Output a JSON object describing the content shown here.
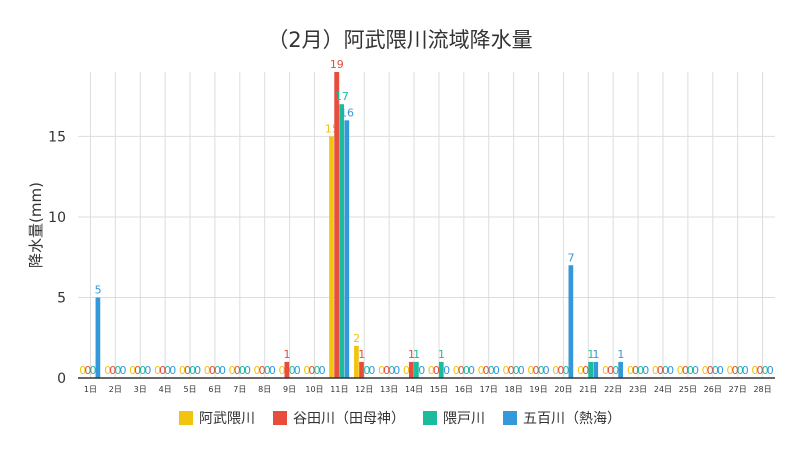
{
  "chart_data": {
    "type": "bar",
    "title": "（2月）阿武隈川流域降水量",
    "ylabel": "降水量(mm)",
    "xlabel": "",
    "ylim": [
      0,
      19
    ],
    "yticks": [
      0,
      5,
      10,
      15
    ],
    "grid": true,
    "legend_position": "bottom",
    "categories": [
      "1日",
      "2日",
      "3日",
      "4日",
      "5日",
      "6日",
      "7日",
      "8日",
      "9日",
      "10日",
      "11日",
      "12日",
      "13日",
      "14日",
      "15日",
      "16日",
      "17日",
      "18日",
      "19日",
      "20日",
      "21日",
      "22日",
      "23日",
      "24日",
      "25日",
      "26日",
      "27日",
      "28日"
    ],
    "series": [
      {
        "name": "阿武隈川",
        "color": "#f1c40f",
        "values": [
          0,
          0,
          0,
          0,
          0,
          0,
          0,
          0,
          0,
          0,
          15,
          2,
          0,
          0,
          0,
          0,
          0,
          0,
          0,
          0,
          0,
          0,
          0,
          0,
          0,
          0,
          0,
          0
        ]
      },
      {
        "name": "谷田川（田母神）",
        "color": "#e74c3c",
        "values": [
          0,
          0,
          0,
          0,
          0,
          0,
          0,
          0,
          1,
          0,
          19,
          1,
          0,
          1,
          0,
          0,
          0,
          0,
          0,
          0,
          0,
          0,
          0,
          0,
          0,
          0,
          0,
          0
        ]
      },
      {
        "name": "隈戸川",
        "color": "#1abc9c",
        "values": [
          0,
          0,
          0,
          0,
          0,
          0,
          0,
          0,
          0,
          0,
          17,
          0,
          0,
          1,
          1,
          0,
          0,
          0,
          0,
          0,
          1,
          0,
          0,
          0,
          0,
          0,
          0,
          0
        ]
      },
      {
        "name": "五百川（熱海）",
        "color": "#3498db",
        "values": [
          5,
          0,
          0,
          0,
          0,
          0,
          0,
          0,
          0,
          0,
          16,
          0,
          0,
          0,
          0,
          0,
          0,
          0,
          0,
          7,
          1,
          1,
          0,
          0,
          0,
          0,
          0,
          0
        ]
      }
    ]
  }
}
